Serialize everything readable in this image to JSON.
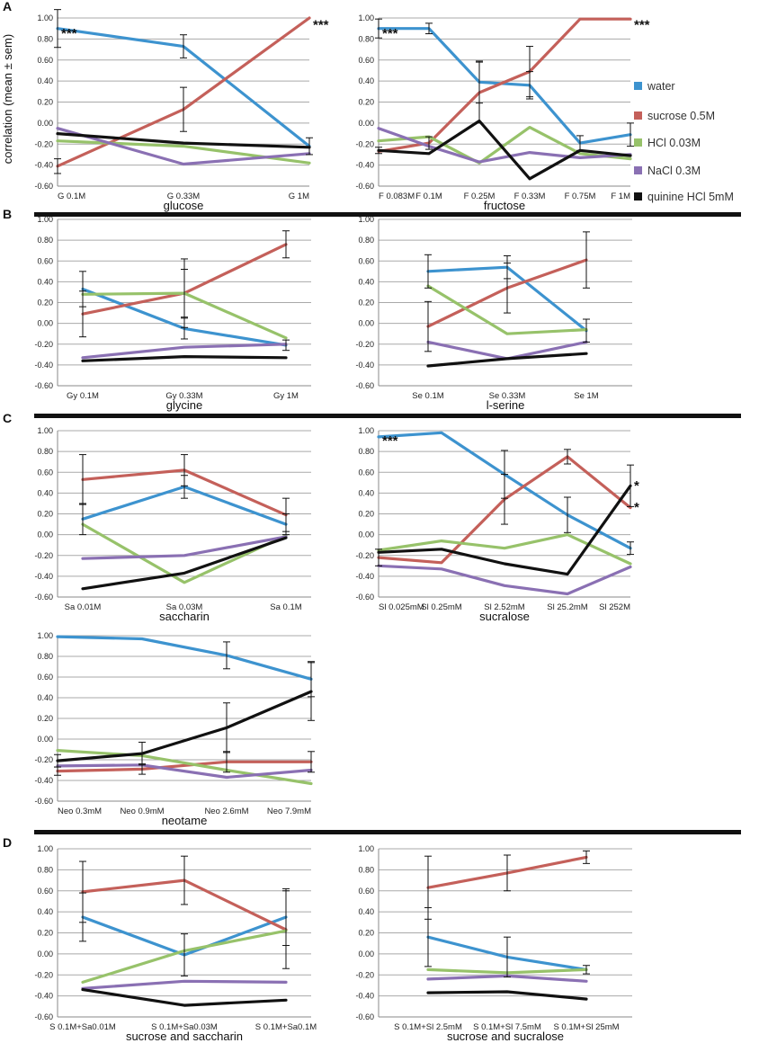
{
  "y_axis_label": "correlation (mean ± sem)",
  "panel_labels": [
    "A",
    "B",
    "C",
    "D"
  ],
  "legend": [
    {
      "name": "water",
      "color": "#3d93cf"
    },
    {
      "name": "sucrose 0.5M",
      "color": "#c4605a"
    },
    {
      "name": "HCl 0.03M",
      "color": "#97c26a"
    },
    {
      "name": "NaCl 0.3M",
      "color": "#8a70b3"
    },
    {
      "name": "quinine HCl 5mM",
      "color": "#111111"
    }
  ],
  "chart_data": [
    {
      "type": "line",
      "title": "glucose",
      "ylim": [
        -0.6,
        1.0
      ],
      "grid": true,
      "y_ticks": [
        "1.00",
        "0.80",
        "0.60",
        "0.40",
        "0.20",
        "0.00",
        "-0.20",
        "-0.40",
        "-0.60"
      ],
      "categories": [
        "G 0.1M",
        "G 0.33M",
        "G 1M"
      ],
      "series": [
        {
          "name": "water",
          "values": [
            0.9,
            0.73,
            -0.22
          ],
          "err": [
            0.18,
            0.11,
            0.08
          ]
        },
        {
          "name": "sucrose 0.5M",
          "values": [
            -0.41,
            0.13,
            1.0
          ],
          "err": [
            0.07,
            0.21,
            0
          ]
        },
        {
          "name": "HCl 0.03M",
          "values": [
            -0.17,
            -0.22,
            -0.38
          ],
          "err": [
            0,
            0,
            0
          ]
        },
        {
          "name": "NaCl 0.3M",
          "values": [
            -0.05,
            -0.39,
            -0.29
          ],
          "err": [
            0,
            0,
            0
          ]
        },
        {
          "name": "quinine HCl 5mM",
          "values": [
            -0.1,
            -0.19,
            -0.23
          ],
          "err": [
            0,
            0,
            0
          ]
        }
      ],
      "annotations": [
        {
          "text": "***",
          "at": [
            0,
            0.88
          ]
        },
        {
          "text": "***",
          "at": [
            2,
            0.96
          ]
        }
      ]
    },
    {
      "type": "line",
      "title": "fructose",
      "ylim": [
        -0.6,
        1.0
      ],
      "grid": true,
      "y_ticks": [
        "1.00",
        "0.80",
        "0.60",
        "0.40",
        "0.20",
        "0.00",
        "-0.20",
        "-0.40",
        "-0.60"
      ],
      "categories": [
        "F 0.083M",
        "F 0.1M",
        "F 0.25M",
        "F 0.33M",
        "F 0.75M",
        "F 1M"
      ],
      "series": [
        {
          "name": "water",
          "values": [
            0.9,
            0.9,
            0.39,
            0.36,
            -0.19,
            -0.11
          ],
          "err": [
            0.09,
            0.05,
            0.2,
            0.13,
            0.07,
            0.11
          ]
        },
        {
          "name": "sucrose 0.5M",
          "values": [
            -0.27,
            -0.19,
            0.29,
            0.49,
            0.99,
            0.99
          ],
          "err": [
            0,
            0.06,
            0.29,
            0.24,
            0,
            0
          ]
        },
        {
          "name": "HCl 0.03M",
          "values": [
            -0.17,
            -0.13,
            -0.38,
            -0.04,
            -0.29,
            -0.34
          ],
          "err": [
            0,
            0,
            0,
            0,
            0,
            0
          ]
        },
        {
          "name": "NaCl 0.3M",
          "values": [
            -0.05,
            -0.22,
            -0.37,
            -0.28,
            -0.33,
            -0.3
          ],
          "err": [
            0,
            0,
            0,
            0,
            0,
            0
          ]
        },
        {
          "name": "quinine HCl 5mM",
          "values": [
            -0.26,
            -0.29,
            0.02,
            -0.53,
            -0.26,
            -0.31
          ],
          "err": [
            0.03,
            0,
            0,
            0,
            0,
            0
          ]
        }
      ],
      "annotations": [
        {
          "text": "***",
          "at": [
            0,
            0.88
          ]
        },
        {
          "text": "***",
          "at": [
            5,
            0.96
          ]
        }
      ]
    },
    {
      "type": "line",
      "title": "glycine",
      "ylim": [
        -0.6,
        1.0
      ],
      "grid": true,
      "y_ticks": [
        "1.00",
        "0.80",
        "0.60",
        "0.40",
        "0.20",
        "0.00",
        "-0.20",
        "-0.40",
        "-0.60"
      ],
      "categories": [
        "Gy 0.1M",
        "Gy 0.33M",
        "Gy 1M"
      ],
      "series": [
        {
          "name": "water",
          "values": [
            0.33,
            -0.05,
            -0.21
          ],
          "err": [
            0.17,
            0.1,
            0.05
          ]
        },
        {
          "name": "sucrose 0.5M",
          "values": [
            0.09,
            0.29,
            0.76
          ],
          "err": [
            0.22,
            0.33,
            0.13
          ]
        },
        {
          "name": "HCl 0.03M",
          "values": [
            0.28,
            0.29,
            -0.14
          ],
          "err": [
            0,
            0.23,
            0
          ]
        },
        {
          "name": "NaCl 0.3M",
          "values": [
            -0.33,
            -0.23,
            -0.2
          ],
          "err": [
            0,
            0,
            0
          ]
        },
        {
          "name": "quinine HCl 5mM",
          "values": [
            -0.36,
            -0.32,
            -0.33
          ],
          "err": [
            0,
            0,
            0
          ]
        }
      ],
      "annotations": []
    },
    {
      "type": "line",
      "title": "l-serine",
      "ylim": [
        -0.6,
        1.0
      ],
      "grid": true,
      "y_ticks": [
        "1.00",
        "0.80",
        "0.60",
        "0.40",
        "0.20",
        "0.00",
        "-0.20",
        "-0.40",
        "-0.60"
      ],
      "categories": [
        "Se 0.1M",
        "Se 0.33M",
        "Se 1M"
      ],
      "series": [
        {
          "name": "water",
          "values": [
            0.5,
            0.54,
            -0.07
          ],
          "err": [
            0.16,
            0.11,
            0.11
          ]
        },
        {
          "name": "sucrose 0.5M",
          "values": [
            -0.03,
            0.34,
            0.61
          ],
          "err": [
            0.24,
            0.24,
            0.27
          ]
        },
        {
          "name": "HCl 0.03M",
          "values": [
            0.36,
            -0.1,
            -0.06
          ],
          "err": [
            0,
            0,
            0
          ]
        },
        {
          "name": "NaCl 0.3M",
          "values": [
            -0.18,
            -0.34,
            -0.18
          ],
          "err": [
            0,
            0,
            0
          ]
        },
        {
          "name": "quinine HCl 5mM",
          "values": [
            -0.41,
            -0.34,
            -0.29
          ],
          "err": [
            0,
            0,
            0
          ]
        }
      ],
      "annotations": []
    },
    {
      "type": "line",
      "title": "saccharin",
      "ylim": [
        -0.6,
        1.0
      ],
      "grid": true,
      "y_ticks": [
        "1.00",
        "0.80",
        "0.60",
        "0.40",
        "0.20",
        "0.00",
        "-0.20",
        "-0.40",
        "-0.60"
      ],
      "categories": [
        "Sa 0.01M",
        "Sa 0.03M",
        "Sa 0.1M"
      ],
      "series": [
        {
          "name": "water",
          "values": [
            0.15,
            0.46,
            0.1
          ],
          "err": [
            0.15,
            0.11,
            0.1
          ]
        },
        {
          "name": "sucrose 0.5M",
          "values": [
            0.53,
            0.62,
            0.19
          ],
          "err": [
            0.24,
            0.15,
            0.16
          ]
        },
        {
          "name": "HCl 0.03M",
          "values": [
            0.1,
            -0.46,
            -0.01
          ],
          "err": [
            0,
            0,
            0
          ]
        },
        {
          "name": "NaCl 0.3M",
          "values": [
            -0.23,
            -0.2,
            -0.02
          ],
          "err": [
            0,
            0,
            0
          ]
        },
        {
          "name": "quinine HCl 5mM",
          "values": [
            -0.52,
            -0.37,
            -0.03
          ],
          "err": [
            0,
            0,
            0
          ]
        }
      ],
      "annotations": []
    },
    {
      "type": "line",
      "title": "sucralose",
      "ylim": [
        -0.6,
        1.0
      ],
      "grid": true,
      "y_ticks": [
        "1.00",
        "0.80",
        "0.60",
        "0.40",
        "0.20",
        "0.00",
        "-0.20",
        "-0.40",
        "-0.60"
      ],
      "categories": [
        "Sl 0.025mM",
        "Sl 0.25mM",
        "Sl 2.52mM",
        "Sl 25.2mM",
        "Sl 252M"
      ],
      "series": [
        {
          "name": "water",
          "values": [
            0.94,
            0.98,
            0.58,
            0.19,
            -0.13
          ],
          "err": [
            0,
            0,
            0.23,
            0.17,
            0.06
          ]
        },
        {
          "name": "sucrose 0.5M",
          "values": [
            -0.22,
            -0.27,
            0.34,
            0.75,
            0.26
          ],
          "err": [
            0.08,
            0,
            0.24,
            0.07,
            0
          ]
        },
        {
          "name": "HCl 0.03M",
          "values": [
            -0.15,
            -0.06,
            -0.13,
            0.0,
            -0.28
          ],
          "err": [
            0,
            0,
            0,
            0,
            0
          ]
        },
        {
          "name": "NaCl 0.3M",
          "values": [
            -0.3,
            -0.33,
            -0.49,
            -0.57,
            -0.31
          ],
          "err": [
            0,
            0,
            0,
            0,
            0
          ]
        },
        {
          "name": "quinine HCl 5mM",
          "values": [
            -0.17,
            -0.14,
            -0.28,
            -0.38,
            0.47
          ],
          "err": [
            0,
            0,
            0,
            0,
            0.2
          ]
        }
      ],
      "annotations": [
        {
          "text": "***",
          "at": [
            0,
            0.93
          ]
        },
        {
          "text": "*",
          "at": [
            4,
            0.5
          ]
        },
        {
          "text": "*",
          "at": [
            4,
            0.29
          ]
        }
      ]
    },
    {
      "type": "line",
      "title": "neotame",
      "ylim": [
        -0.6,
        1.0
      ],
      "grid": true,
      "y_ticks": [
        "1.00",
        "0.80",
        "0.60",
        "0.40",
        "0.20",
        "0.00",
        "-0.20",
        "-0.40",
        "-0.60"
      ],
      "categories": [
        "Neo 0.3mM",
        "Neo 0.9mM",
        "Neo 2.6mM",
        "Neo 7.9mM"
      ],
      "series": [
        {
          "name": "water",
          "values": [
            0.99,
            0.97,
            0.81,
            0.58
          ],
          "err": [
            0,
            0,
            0.13,
            0.17
          ]
        },
        {
          "name": "sucrose 0.5M",
          "values": [
            -0.31,
            -0.29,
            -0.22,
            -0.22
          ],
          "err": [
            0.04,
            0.05,
            0.1,
            0.1
          ]
        },
        {
          "name": "HCl 0.03M",
          "values": [
            -0.11,
            -0.16,
            -0.3,
            -0.43
          ],
          "err": [
            0,
            0,
            0,
            0
          ]
        },
        {
          "name": "NaCl 0.3M",
          "values": [
            -0.26,
            -0.25,
            -0.37,
            -0.3
          ],
          "err": [
            0,
            0,
            0,
            0
          ]
        },
        {
          "name": "quinine HCl 5mM",
          "values": [
            -0.21,
            -0.14,
            0.11,
            0.46
          ],
          "err": [
            0.06,
            0.11,
            0.24,
            0.28
          ]
        }
      ],
      "annotations": []
    },
    {
      "type": "line",
      "title": "sucrose and saccharin",
      "ylim": [
        -0.6,
        1.0
      ],
      "grid": true,
      "y_ticks": [
        "1.00",
        "0.80",
        "0.60",
        "0.40",
        "0.20",
        "0.00",
        "-0.20",
        "-0.40",
        "-0.60"
      ],
      "categories": [
        "S 0.1M+Sa0.01M",
        "S 0.1M+Sa0.03M",
        "S 0.1M+Sa0.1M"
      ],
      "series": [
        {
          "name": "water",
          "values": [
            0.35,
            -0.01,
            0.35
          ],
          "err": [
            0.23,
            0.2,
            0.27
          ]
        },
        {
          "name": "sucrose 0.5M",
          "values": [
            0.59,
            0.7,
            0.23
          ],
          "err": [
            0.29,
            0.23,
            0.37
          ]
        },
        {
          "name": "HCl 0.03M",
          "values": [
            -0.27,
            0.03,
            0.22
          ],
          "err": [
            0,
            0,
            0
          ]
        },
        {
          "name": "NaCl 0.3M",
          "values": [
            -0.33,
            -0.26,
            -0.27
          ],
          "err": [
            0,
            0,
            0
          ]
        },
        {
          "name": "quinine HCl 5mM",
          "values": [
            -0.34,
            -0.49,
            -0.44
          ],
          "err": [
            0,
            0,
            0
          ]
        }
      ],
      "annotations": []
    },
    {
      "type": "line",
      "title": "sucrose and sucralose",
      "ylim": [
        -0.6,
        1.0
      ],
      "grid": true,
      "y_ticks": [
        "1.00",
        "0.80",
        "0.60",
        "0.40",
        "0.20",
        "0.00",
        "-0.20",
        "-0.40",
        "-0.60"
      ],
      "categories": [
        "S 0.1M+Sl 2.5mM",
        "S 0.1M+Sl 7.5mM",
        "S 0.1M+Sl 25mM"
      ],
      "series": [
        {
          "name": "water",
          "values": [
            0.16,
            -0.03,
            -0.15
          ],
          "err": [
            0.28,
            0.19,
            0.04
          ]
        },
        {
          "name": "sucrose 0.5M",
          "values": [
            0.63,
            0.77,
            0.92
          ],
          "err": [
            0.3,
            0.17,
            0.06
          ]
        },
        {
          "name": "HCl 0.03M",
          "values": [
            -0.15,
            -0.18,
            -0.15
          ],
          "err": [
            0,
            0,
            0
          ]
        },
        {
          "name": "NaCl 0.3M",
          "values": [
            -0.24,
            -0.21,
            -0.26
          ],
          "err": [
            0,
            0,
            0
          ]
        },
        {
          "name": "quinine HCl 5mM",
          "values": [
            -0.37,
            -0.36,
            -0.43
          ],
          "err": [
            0,
            0,
            0
          ]
        }
      ],
      "annotations": []
    }
  ]
}
